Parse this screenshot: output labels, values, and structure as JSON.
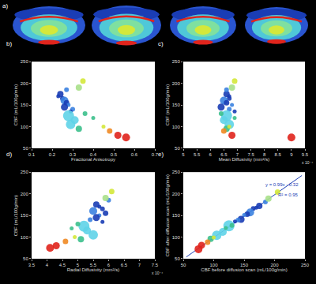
{
  "panel_a": {
    "panel_label": "a)"
  },
  "chart_data": [
    {
      "type": "scatter",
      "panel_label": "b)",
      "x_label": "Fractional Anisotropy",
      "y_label": "CBF (mL/100g/min)",
      "x": [
        0.24,
        0.25,
        0.26,
        0.27,
        0.28,
        0.26,
        0.3,
        0.29,
        0.27,
        0.33,
        0.35,
        0.28,
        0.31,
        0.29,
        0.33,
        0.36,
        0.4,
        0.48,
        0.52,
        0.56,
        0.45,
        0.23
      ],
      "values": [
        175,
        165,
        160,
        155,
        150,
        145,
        140,
        135,
        185,
        190,
        205,
        125,
        115,
        105,
        95,
        130,
        120,
        90,
        80,
        75,
        100,
        170
      ],
      "sizes": [
        8,
        6,
        10,
        7,
        5,
        9,
        6,
        5,
        6,
        8,
        7,
        14,
        10,
        12,
        8,
        6,
        5,
        7,
        9,
        10,
        5,
        5
      ],
      "colors": [
        "#1a3db5",
        "#1a3db5",
        "#3b82e0",
        "#1a3db5",
        "#3b82e0",
        "#1a3db5",
        "#3b82e0",
        "#1a3db5",
        "#3b82e0",
        "#a8e08a",
        "#d4e83a",
        "#5fd3e8",
        "#5fd3e8",
        "#5fd3e8",
        "#3cc08c",
        "#3cc08c",
        "#3cc08c",
        "#f08a24",
        "#e0241c",
        "#e0241c",
        "#d4e83a",
        "#1a3db5"
      ],
      "xlim": [
        0.1,
        0.7
      ],
      "xticks": [
        0.1,
        0.2,
        0.3,
        0.4,
        0.5,
        0.6,
        0.7
      ],
      "ylim": [
        50,
        250
      ],
      "yticks": [
        50,
        100,
        150,
        200,
        250
      ]
    },
    {
      "type": "scatter",
      "panel_label": "c)",
      "x_label": "Mean Diffusivity (mm²/s)",
      "y_label": "CBF (mL/100g/min)",
      "annotations": [
        "x 10⁻⁴"
      ],
      "x": [
        6.6,
        6.7,
        6.5,
        6.6,
        6.8,
        6.4,
        6.7,
        6.9,
        6.6,
        6.8,
        6.9,
        6.6,
        6.5,
        6.7,
        6.6,
        6.4,
        6.9,
        6.5,
        6.8,
        9.0,
        6.7,
        6.7
      ],
      "values": [
        175,
        165,
        160,
        155,
        150,
        145,
        140,
        135,
        185,
        190,
        205,
        125,
        115,
        105,
        95,
        130,
        120,
        90,
        80,
        75,
        100,
        170
      ],
      "sizes": [
        8,
        6,
        10,
        7,
        5,
        9,
        6,
        5,
        6,
        8,
        7,
        14,
        10,
        12,
        8,
        6,
        5,
        7,
        9,
        10,
        5,
        5
      ],
      "colors": [
        "#1a3db5",
        "#1a3db5",
        "#3b82e0",
        "#1a3db5",
        "#3b82e0",
        "#1a3db5",
        "#3b82e0",
        "#1a3db5",
        "#3b82e0",
        "#a8e08a",
        "#d4e83a",
        "#5fd3e8",
        "#5fd3e8",
        "#5fd3e8",
        "#3cc08c",
        "#3cc08c",
        "#3cc08c",
        "#f08a24",
        "#e0241c",
        "#e0241c",
        "#d4e83a",
        "#1a3db5"
      ],
      "xlim": [
        5,
        9.5
      ],
      "xticks": [
        5,
        5.5,
        6,
        6.5,
        7,
        7.5,
        8,
        8.5,
        9,
        9.5
      ],
      "ylim": [
        50,
        250
      ],
      "yticks": [
        50,
        100,
        150,
        200,
        250
      ]
    },
    {
      "type": "scatter",
      "panel_label": "d)",
      "x_label": "Radial Diffusivity (mm²/s)",
      "y_label": "CBF (mL/100g/min)",
      "annotations": [
        "x 10⁻⁴"
      ],
      "x": [
        5.6,
        5.8,
        5.5,
        5.9,
        5.7,
        5.6,
        5.4,
        5.8,
        6.0,
        5.9,
        6.1,
        5.2,
        5.3,
        5.5,
        5.1,
        5.0,
        4.8,
        4.6,
        4.3,
        4.1,
        4.9,
        5.7
      ],
      "values": [
        175,
        165,
        160,
        155,
        150,
        145,
        140,
        135,
        185,
        190,
        205,
        125,
        115,
        105,
        95,
        130,
        120,
        90,
        80,
        75,
        100,
        170
      ],
      "sizes": [
        8,
        6,
        10,
        7,
        5,
        9,
        6,
        5,
        6,
        8,
        7,
        14,
        10,
        12,
        8,
        6,
        5,
        7,
        9,
        10,
        5,
        5
      ],
      "colors": [
        "#1a3db5",
        "#1a3db5",
        "#3b82e0",
        "#1a3db5",
        "#3b82e0",
        "#1a3db5",
        "#3b82e0",
        "#1a3db5",
        "#3b82e0",
        "#a8e08a",
        "#d4e83a",
        "#5fd3e8",
        "#5fd3e8",
        "#5fd3e8",
        "#3cc08c",
        "#3cc08c",
        "#3cc08c",
        "#f08a24",
        "#e0241c",
        "#e0241c",
        "#d4e83a",
        "#1a3db5"
      ],
      "xlim": [
        3.5,
        7.5
      ],
      "xticks": [
        3.5,
        4,
        4.5,
        5,
        5.5,
        6,
        6.5,
        7,
        7.5
      ],
      "ylim": [
        50,
        250
      ],
      "yticks": [
        50,
        100,
        150,
        200,
        250
      ]
    },
    {
      "type": "scatter",
      "panel_label": "e)",
      "x_label": "CBF before diffusion scan (mL/100g/min)",
      "y_label": "CBF after diffusion scan (mL/100g/min)",
      "annotations": [
        "y = 0.99x - 0.32",
        "R² = 0.95"
      ],
      "x": [
        175,
        165,
        160,
        155,
        150,
        145,
        140,
        135,
        185,
        190,
        205,
        125,
        115,
        105,
        95,
        130,
        120,
        90,
        80,
        75,
        100,
        170
      ],
      "values": [
        172,
        166,
        157,
        153,
        151,
        141,
        139,
        136,
        181,
        189,
        204,
        126,
        112,
        104,
        96,
        127,
        121,
        88,
        81,
        72,
        99,
        168
      ],
      "sizes": [
        8,
        6,
        10,
        7,
        5,
        9,
        6,
        5,
        6,
        8,
        7,
        14,
        10,
        12,
        8,
        6,
        5,
        7,
        9,
        10,
        5,
        5
      ],
      "colors": [
        "#1a3db5",
        "#1a3db5",
        "#3b82e0",
        "#1a3db5",
        "#3b82e0",
        "#1a3db5",
        "#3b82e0",
        "#1a3db5",
        "#3b82e0",
        "#a8e08a",
        "#d4e83a",
        "#5fd3e8",
        "#5fd3e8",
        "#5fd3e8",
        "#3cc08c",
        "#3cc08c",
        "#3cc08c",
        "#f08a24",
        "#e0241c",
        "#e0241c",
        "#d4e83a",
        "#1a3db5"
      ],
      "series": [
        {
          "type": "line",
          "color": "#1a3db5",
          "x": [
            55,
            245
          ],
          "values": [
            54.1,
            242.2
          ]
        }
      ],
      "xlim": [
        50,
        250
      ],
      "xticks": [
        50,
        100,
        150,
        200,
        250
      ],
      "ylim": [
        50,
        250
      ],
      "yticks": [
        50,
        100,
        150,
        200,
        250
      ]
    }
  ]
}
